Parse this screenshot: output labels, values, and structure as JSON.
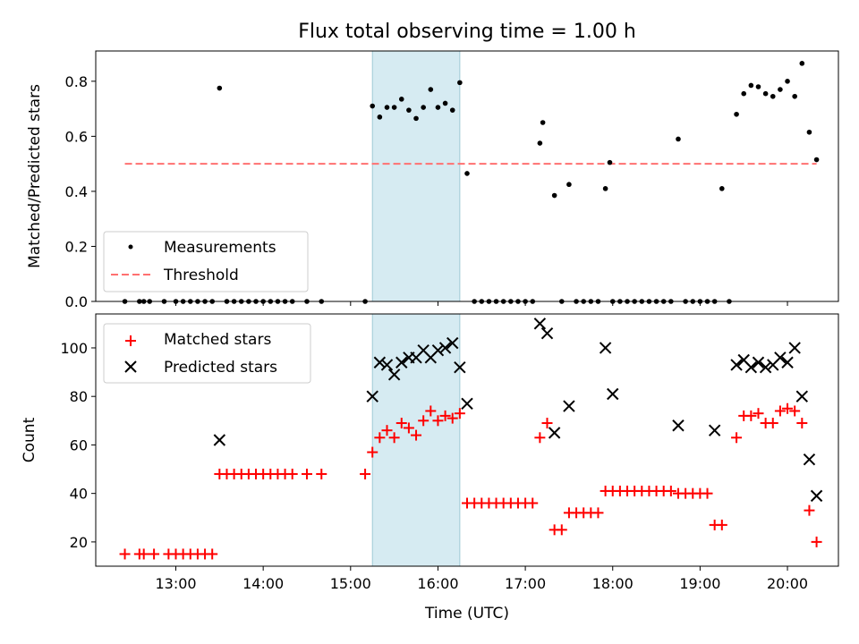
{
  "chart_data": [
    {
      "type": "scatter",
      "title": "Flux total observing time = 1.00 h",
      "ylabel": "Matched/Predicted stars",
      "xlabel": "",
      "ylim": [
        0,
        0.91
      ],
      "yticks": [
        0.0,
        0.2,
        0.4,
        0.6,
        0.8
      ],
      "ytick_labels": [
        "0.0",
        "0.2",
        "0.4",
        "0.6",
        "0.8"
      ],
      "legend_position": "lower left",
      "highlight_span": {
        "x": [
          "15:15",
          "16:15"
        ],
        "color": "#add8e6"
      },
      "series": [
        {
          "name": "Measurements",
          "kind": "scatter",
          "marker": "dot",
          "color": "#000000",
          "points": [
            [
              "12:25",
              0
            ],
            [
              "12:35",
              0
            ],
            [
              "12:38",
              0
            ],
            [
              "12:42",
              0
            ],
            [
              "12:52",
              0
            ],
            [
              "13:00",
              0
            ],
            [
              "13:05",
              0
            ],
            [
              "13:10",
              0
            ],
            [
              "13:15",
              0
            ],
            [
              "13:20",
              0
            ],
            [
              "13:25",
              0
            ],
            [
              "13:30",
              0.775
            ],
            [
              "13:35",
              0
            ],
            [
              "13:40",
              0
            ],
            [
              "13:45",
              0
            ],
            [
              "13:50",
              0
            ],
            [
              "13:55",
              0
            ],
            [
              "14:00",
              0
            ],
            [
              "14:05",
              0
            ],
            [
              "14:10",
              0
            ],
            [
              "14:15",
              0
            ],
            [
              "14:20",
              0
            ],
            [
              "14:30",
              0
            ],
            [
              "14:40",
              0
            ],
            [
              "15:10",
              0
            ],
            [
              "15:15",
              0.71
            ],
            [
              "15:20",
              0.67
            ],
            [
              "15:25",
              0.705
            ],
            [
              "15:30",
              0.705
            ],
            [
              "15:35",
              0.735
            ],
            [
              "15:40",
              0.695
            ],
            [
              "15:45",
              0.665
            ],
            [
              "15:50",
              0.705
            ],
            [
              "15:55",
              0.77
            ],
            [
              "16:00",
              0.705
            ],
            [
              "16:05",
              0.72
            ],
            [
              "16:10",
              0.695
            ],
            [
              "16:15",
              0.795
            ],
            [
              "16:20",
              0.465
            ],
            [
              "16:25",
              0
            ],
            [
              "16:30",
              0
            ],
            [
              "16:35",
              0
            ],
            [
              "16:40",
              0
            ],
            [
              "16:45",
              0
            ],
            [
              "16:50",
              0
            ],
            [
              "16:55",
              0
            ],
            [
              "17:00",
              0
            ],
            [
              "17:05",
              0
            ],
            [
              "17:10",
              0.575
            ],
            [
              "17:12",
              0.65
            ],
            [
              "17:20",
              0.385
            ],
            [
              "17:25",
              0
            ],
            [
              "17:30",
              0.425
            ],
            [
              "17:35",
              0
            ],
            [
              "17:40",
              0
            ],
            [
              "17:45",
              0
            ],
            [
              "17:50",
              0
            ],
            [
              "17:55",
              0.41
            ],
            [
              "17:58",
              0.505
            ],
            [
              "18:00",
              0
            ],
            [
              "18:05",
              0
            ],
            [
              "18:10",
              0
            ],
            [
              "18:15",
              0
            ],
            [
              "18:20",
              0
            ],
            [
              "18:25",
              0
            ],
            [
              "18:30",
              0
            ],
            [
              "18:35",
              0
            ],
            [
              "18:40",
              0
            ],
            [
              "18:45",
              0.59
            ],
            [
              "18:50",
              0
            ],
            [
              "18:55",
              0
            ],
            [
              "19:00",
              0
            ],
            [
              "19:05",
              0
            ],
            [
              "19:10",
              0
            ],
            [
              "19:15",
              0.41
            ],
            [
              "19:20",
              0
            ],
            [
              "19:25",
              0.68
            ],
            [
              "19:30",
              0.755
            ],
            [
              "19:35",
              0.785
            ],
            [
              "19:40",
              0.78
            ],
            [
              "19:45",
              0.755
            ],
            [
              "19:50",
              0.745
            ],
            [
              "19:55",
              0.77
            ],
            [
              "20:00",
              0.8
            ],
            [
              "20:05",
              0.745
            ],
            [
              "20:10",
              0.865
            ],
            [
              "20:15",
              0.615
            ],
            [
              "20:20",
              0.515
            ]
          ]
        },
        {
          "name": "Threshold",
          "kind": "line",
          "style": "dashed",
          "color": "#ff7070",
          "points": [
            [
              "12:25",
              0.5
            ],
            [
              "20:20",
              0.5
            ]
          ]
        }
      ]
    },
    {
      "type": "scatter",
      "title": "",
      "ylabel": "Count",
      "xlabel": "Time (UTC)",
      "ylim": [
        10,
        114
      ],
      "yticks": [
        20,
        40,
        60,
        80,
        100
      ],
      "ytick_labels": [
        "20",
        "40",
        "60",
        "80",
        "100"
      ],
      "xlim": [
        "12:05",
        "20:35"
      ],
      "xticks": [
        "13:00",
        "14:00",
        "15:00",
        "16:00",
        "17:00",
        "18:00",
        "19:00",
        "20:00"
      ],
      "xtick_labels": [
        "13:00",
        "14:00",
        "15:00",
        "16:00",
        "17:00",
        "18:00",
        "19:00",
        "20:00"
      ],
      "legend_position": "upper left",
      "highlight_span": {
        "x": [
          "15:15",
          "16:15"
        ],
        "color": "#add8e6"
      },
      "series": [
        {
          "name": "Matched stars",
          "kind": "scatter",
          "marker": "plus",
          "color": "#ff0000",
          "points": [
            [
              "12:25",
              15
            ],
            [
              "12:35",
              15
            ],
            [
              "12:38",
              15
            ],
            [
              "12:45",
              15
            ],
            [
              "12:55",
              15
            ],
            [
              "13:00",
              15
            ],
            [
              "13:05",
              15
            ],
            [
              "13:10",
              15
            ],
            [
              "13:15",
              15
            ],
            [
              "13:20",
              15
            ],
            [
              "13:25",
              15
            ],
            [
              "13:30",
              48
            ],
            [
              "13:35",
              48
            ],
            [
              "13:40",
              48
            ],
            [
              "13:45",
              48
            ],
            [
              "13:50",
              48
            ],
            [
              "13:55",
              48
            ],
            [
              "14:00",
              48
            ],
            [
              "14:05",
              48
            ],
            [
              "14:10",
              48
            ],
            [
              "14:15",
              48
            ],
            [
              "14:20",
              48
            ],
            [
              "14:30",
              48
            ],
            [
              "14:40",
              48
            ],
            [
              "15:10",
              48
            ],
            [
              "15:15",
              57
            ],
            [
              "15:20",
              63
            ],
            [
              "15:25",
              66
            ],
            [
              "15:30",
              63
            ],
            [
              "15:35",
              69
            ],
            [
              "15:40",
              67
            ],
            [
              "15:45",
              64
            ],
            [
              "15:50",
              70
            ],
            [
              "15:55",
              74
            ],
            [
              "16:00",
              70
            ],
            [
              "16:05",
              72
            ],
            [
              "16:10",
              71
            ],
            [
              "16:15",
              73
            ],
            [
              "16:20",
              36
            ],
            [
              "16:25",
              36
            ],
            [
              "16:30",
              36
            ],
            [
              "16:35",
              36
            ],
            [
              "16:40",
              36
            ],
            [
              "16:45",
              36
            ],
            [
              "16:50",
              36
            ],
            [
              "16:55",
              36
            ],
            [
              "17:00",
              36
            ],
            [
              "17:05",
              36
            ],
            [
              "17:10",
              63
            ],
            [
              "17:15",
              69
            ],
            [
              "17:20",
              25
            ],
            [
              "17:25",
              25
            ],
            [
              "17:30",
              32
            ],
            [
              "17:35",
              32
            ],
            [
              "17:40",
              32
            ],
            [
              "17:45",
              32
            ],
            [
              "17:50",
              32
            ],
            [
              "17:55",
              41
            ],
            [
              "18:00",
              41
            ],
            [
              "18:05",
              41
            ],
            [
              "18:10",
              41
            ],
            [
              "18:15",
              41
            ],
            [
              "18:20",
              41
            ],
            [
              "18:25",
              41
            ],
            [
              "18:30",
              41
            ],
            [
              "18:35",
              41
            ],
            [
              "18:40",
              41
            ],
            [
              "18:45",
              40
            ],
            [
              "18:50",
              40
            ],
            [
              "18:55",
              40
            ],
            [
              "19:00",
              40
            ],
            [
              "19:05",
              40
            ],
            [
              "19:10",
              27
            ],
            [
              "19:15",
              27
            ],
            [
              "19:25",
              63
            ],
            [
              "19:30",
              72
            ],
            [
              "19:35",
              72
            ],
            [
              "19:40",
              73
            ],
            [
              "19:45",
              69
            ],
            [
              "19:50",
              69
            ],
            [
              "19:55",
              74
            ],
            [
              "20:00",
              75
            ],
            [
              "20:05",
              74
            ],
            [
              "20:10",
              69
            ],
            [
              "20:15",
              33
            ],
            [
              "20:20",
              20
            ]
          ]
        },
        {
          "name": "Predicted stars",
          "kind": "scatter",
          "marker": "x",
          "color": "#000000",
          "points": [
            [
              "13:30",
              62
            ],
            [
              "15:15",
              80
            ],
            [
              "15:20",
              94
            ],
            [
              "15:25",
              93
            ],
            [
              "15:30",
              89
            ],
            [
              "15:35",
              94
            ],
            [
              "15:40",
              96
            ],
            [
              "15:45",
              96
            ],
            [
              "15:50",
              99
            ],
            [
              "15:55",
              96
            ],
            [
              "16:00",
              99
            ],
            [
              "16:05",
              100
            ],
            [
              "16:10",
              102
            ],
            [
              "16:15",
              92
            ],
            [
              "16:20",
              77
            ],
            [
              "17:10",
              110
            ],
            [
              "17:15",
              106
            ],
            [
              "17:20",
              65
            ],
            [
              "17:30",
              76
            ],
            [
              "17:55",
              100
            ],
            [
              "18:00",
              81
            ],
            [
              "18:45",
              68
            ],
            [
              "19:10",
              66
            ],
            [
              "19:25",
              93
            ],
            [
              "19:30",
              95
            ],
            [
              "19:35",
              92
            ],
            [
              "19:40",
              94
            ],
            [
              "19:45",
              92
            ],
            [
              "19:50",
              93
            ],
            [
              "19:55",
              96
            ],
            [
              "20:00",
              94
            ],
            [
              "20:05",
              100
            ],
            [
              "20:10",
              80
            ],
            [
              "20:15",
              54
            ],
            [
              "20:20",
              39
            ]
          ]
        }
      ]
    }
  ]
}
